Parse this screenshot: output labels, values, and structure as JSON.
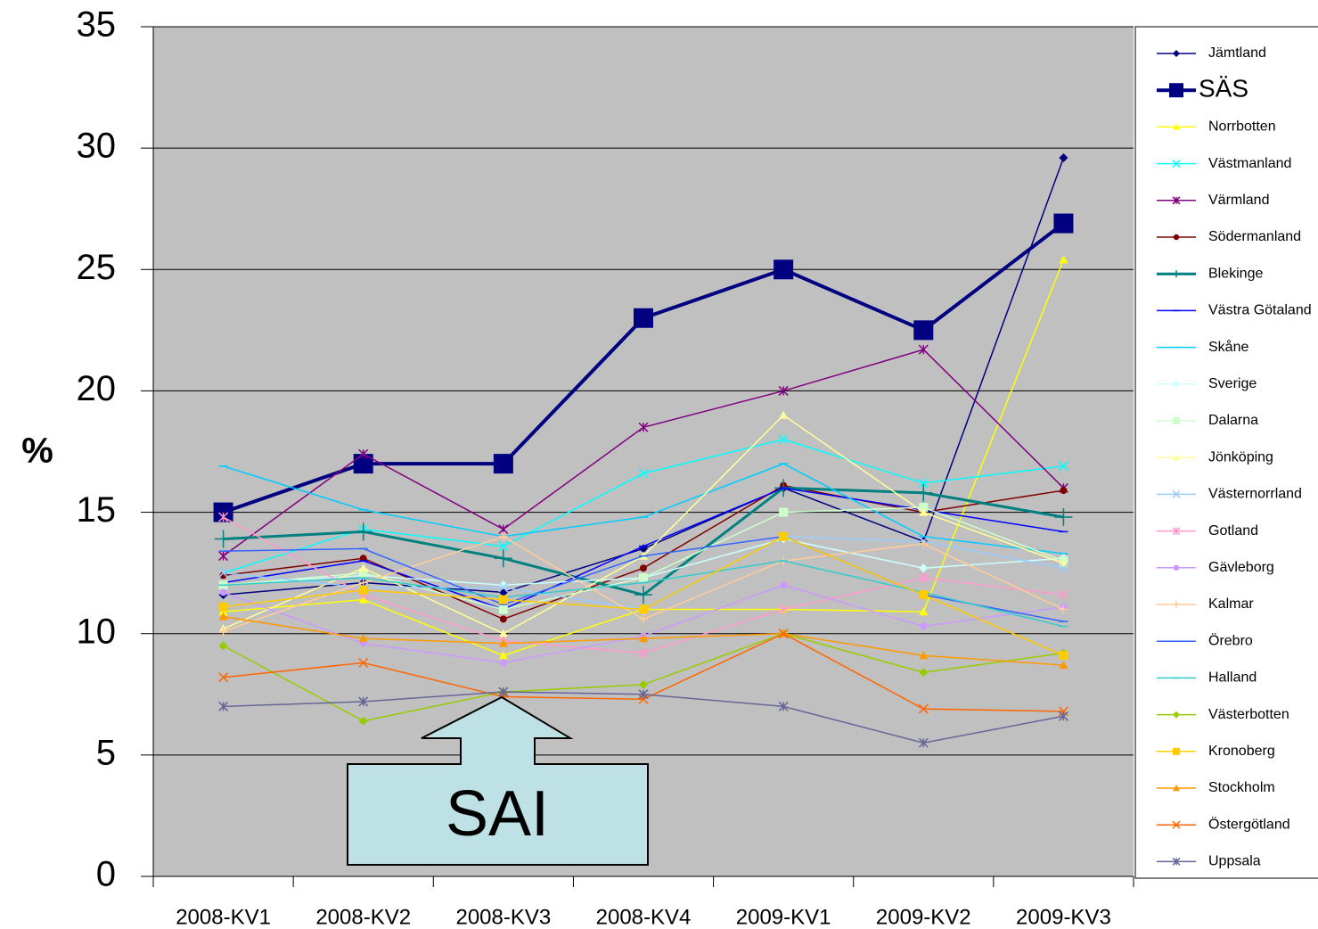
{
  "chart_data": {
    "type": "line",
    "y_label": "%",
    "annotation": "SAI",
    "categories": [
      "2008-KV1",
      "2008-KV2",
      "2008-KV3",
      "2008-KV4",
      "2009-KV1",
      "2009-KV2",
      "2009-KV3"
    ],
    "ylim": [
      0,
      35
    ],
    "yticks": [
      0,
      5,
      10,
      15,
      20,
      25,
      30,
      35
    ],
    "grid": true,
    "legend": "right",
    "background": "#c0c0c0",
    "series": [
      {
        "name": "Jämtland",
        "color": "#000080",
        "marker": "diamond",
        "values": [
          11.6,
          12.1,
          11.7,
          13.5,
          16,
          13.8,
          29.6
        ]
      },
      {
        "name": "SÄS",
        "color": "#000080",
        "marker": "square",
        "line_width": 4,
        "values": [
          15,
          17,
          17,
          23,
          25,
          22.5,
          26.9
        ]
      },
      {
        "name": "Norrbotten",
        "color": "#ffff00",
        "marker": "triangle",
        "values": [
          10.9,
          11.4,
          9.1,
          11,
          11,
          10.9,
          25.4
        ]
      },
      {
        "name": "Västmanland",
        "color": "#00ffff",
        "marker": "x",
        "values": [
          12.5,
          14.3,
          13.6,
          16.6,
          18,
          16.2,
          16.9
        ]
      },
      {
        "name": "Värmland",
        "color": "#800080",
        "marker": "star",
        "values": [
          13.2,
          17.4,
          14.3,
          18.5,
          20,
          21.7,
          16
        ]
      },
      {
        "name": "Södermanland",
        "color": "#800000",
        "marker": "circle",
        "values": [
          12.4,
          13.1,
          10.6,
          12.7,
          16.1,
          15,
          15.9
        ]
      },
      {
        "name": "Blekinge",
        "color": "#008080",
        "marker": "plus",
        "line_width": 3,
        "values": [
          13.9,
          14.2,
          13.1,
          11.6,
          16,
          15.8,
          14.8
        ]
      },
      {
        "name": "Västra Götaland",
        "color": "#0000ff",
        "marker": "dash",
        "values": [
          12.1,
          13,
          11,
          13.6,
          16,
          15.1,
          14.2
        ]
      },
      {
        "name": "Skåne",
        "color": "#00ccff",
        "marker": "dash",
        "values": [
          16.9,
          15.1,
          14,
          14.8,
          17,
          14,
          13.3
        ]
      },
      {
        "name": "Sverige",
        "color": "#ccffff",
        "marker": "diamond",
        "values": [
          12,
          12.4,
          12,
          12.3,
          13.9,
          12.7,
          13.1
        ]
      },
      {
        "name": "Dalarna",
        "color": "#ccffcc",
        "marker": "square",
        "values": [
          12,
          12.5,
          11,
          12.3,
          15,
          15.2,
          13
        ]
      },
      {
        "name": "Jönköping",
        "color": "#ffff99",
        "marker": "triangle",
        "values": [
          10.2,
          12.7,
          10,
          13.2,
          19,
          15,
          12.9
        ]
      },
      {
        "name": "Västernorrland",
        "color": "#99ccff",
        "marker": "x",
        "values": [
          12.5,
          11.9,
          11.9,
          11,
          14,
          13.8,
          12.7
        ]
      },
      {
        "name": "Gotland",
        "color": "#ff99cc",
        "marker": "star",
        "values": [
          14.8,
          11.6,
          9.7,
          9.2,
          11,
          12.3,
          11.6
        ]
      },
      {
        "name": "Gävleborg",
        "color": "#cc99ff",
        "marker": "circle",
        "values": [
          11.7,
          9.6,
          8.8,
          9.9,
          12,
          10.3,
          11.1
        ]
      },
      {
        "name": "Kalmar",
        "color": "#ffcc99",
        "marker": "plus",
        "values": [
          10.1,
          12.1,
          14,
          10.6,
          13,
          13.7,
          11
        ]
      },
      {
        "name": "Örebro",
        "color": "#3366ff",
        "marker": "dash",
        "values": [
          13.4,
          13.5,
          11.2,
          13.2,
          14,
          11.6,
          10.5
        ]
      },
      {
        "name": "Halland",
        "color": "#33cccc",
        "marker": "dash",
        "values": [
          12,
          12.3,
          11.5,
          12.1,
          13,
          11.7,
          10.3
        ]
      },
      {
        "name": "Västerbotten",
        "color": "#99cc00",
        "marker": "diamond",
        "values": [
          9.5,
          6.4,
          7.6,
          7.9,
          10,
          8.4,
          9.2
        ]
      },
      {
        "name": "Kronoberg",
        "color": "#ffcc00",
        "marker": "square",
        "values": [
          11.1,
          11.8,
          11.4,
          11,
          14,
          11.6,
          9.1
        ]
      },
      {
        "name": "Stockholm",
        "color": "#ff9900",
        "marker": "triangle",
        "values": [
          10.7,
          9.8,
          9.6,
          9.8,
          10,
          9.1,
          8.7
        ]
      },
      {
        "name": "Östergötland",
        "color": "#ff6600",
        "marker": "x",
        "values": [
          8.2,
          8.8,
          7.4,
          7.3,
          10,
          6.9,
          6.8
        ]
      },
      {
        "name": "Uppsala",
        "color": "#666699",
        "marker": "star",
        "values": [
          7,
          7.2,
          7.6,
          7.5,
          7,
          5.5,
          6.6
        ]
      }
    ]
  }
}
